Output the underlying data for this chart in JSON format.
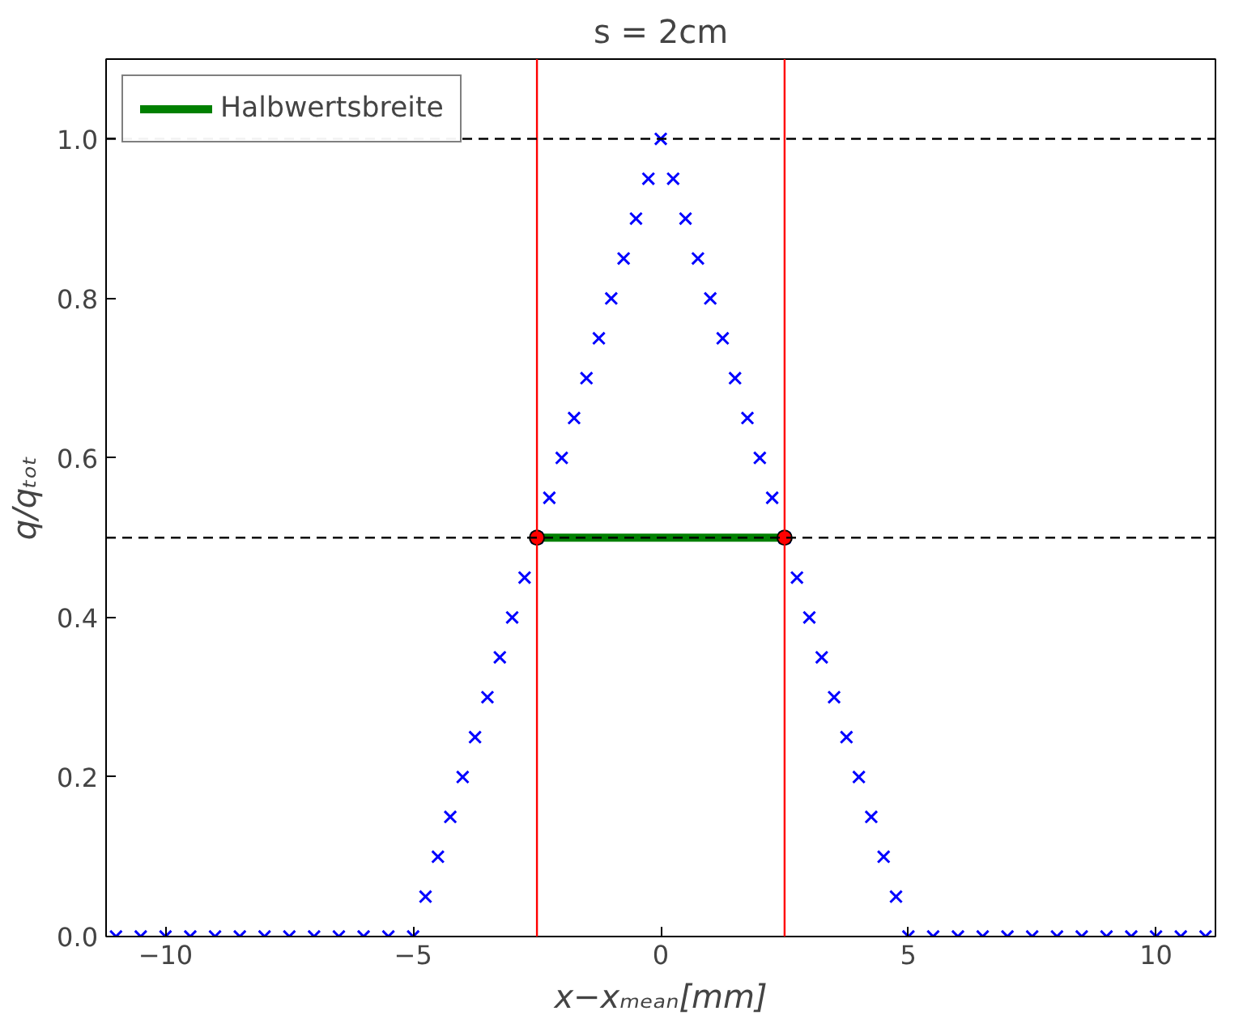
{
  "chart_data": {
    "type": "scatter",
    "title": "s = 2cm",
    "xlabel": "x−xₘₑₐₙ[mm]",
    "ylabel": "q/qₜₒₜ",
    "xlim": [
      -11.2,
      11.2
    ],
    "ylim": [
      0,
      1.1
    ],
    "xticks": [
      {
        "value": -10,
        "label": "−10"
      },
      {
        "value": -5,
        "label": "−5"
      },
      0,
      5,
      10
    ],
    "yticks": [
      {
        "value": 0,
        "label": "0.0"
      },
      0.2,
      0.4,
      0.6,
      0.8,
      {
        "value": 1,
        "label": "1.0"
      }
    ],
    "grid": false,
    "legend": "top left",
    "series": [
      {
        "marker": "cross",
        "color": "#0000ff",
        "x": [
          -11,
          -10.5,
          -10,
          -9.5,
          -9,
          -8.5,
          -8,
          -7.5,
          -7,
          -6.5,
          -6,
          -5.5,
          -5,
          -4.75,
          -4.5,
          -4.25,
          -4,
          -3.75,
          -3.5,
          -3.25,
          -3,
          -2.75,
          -2.5,
          -2.25,
          -2,
          -1.75,
          -1.5,
          -1.25,
          -1,
          -0.75,
          -0.5,
          -0.25,
          0,
          0.25,
          0.5,
          0.75,
          1,
          1.25,
          1.5,
          1.75,
          2,
          2.25,
          2.5,
          2.75,
          3,
          3.25,
          3.5,
          3.75,
          4,
          4.25,
          4.5,
          4.75,
          5,
          5.5,
          6,
          6.5,
          7,
          7.5,
          8,
          8.5,
          9,
          9.5,
          10,
          10.5,
          11
        ],
        "values": [
          0,
          0,
          0,
          0,
          0,
          0,
          0,
          0,
          0,
          0,
          0,
          0,
          0,
          0.05,
          0.1,
          0.15,
          0.2,
          0.25,
          0.3,
          0.35,
          0.4,
          0.45,
          0.5,
          0.55,
          0.6,
          0.65,
          0.7,
          0.75,
          0.8,
          0.85,
          0.9,
          0.95,
          1,
          0.95,
          0.9,
          0.85,
          0.8,
          0.75,
          0.7,
          0.65,
          0.6,
          0.55,
          0.5,
          0.45,
          0.4,
          0.35,
          0.3,
          0.25,
          0.2,
          0.15,
          0.1,
          0.05,
          0,
          0,
          0,
          0,
          0,
          0,
          0,
          0,
          0,
          0,
          0,
          0,
          0
        ]
      },
      {
        "type": "line",
        "name": "Halbwertsbreite",
        "color": "#008000",
        "x": [
          -2.5,
          2.5
        ],
        "values": [
          0.5,
          0.5
        ]
      },
      {
        "type": "scatter",
        "marker": "circle",
        "color": "#ff0000",
        "x": [
          -2.5,
          2.5
        ],
        "values": [
          0.5,
          0.5
        ]
      }
    ],
    "ref_lines": [
      {
        "axis": "x",
        "value": -2.5,
        "color": "#ff0000",
        "line_style": "solid"
      },
      {
        "axis": "x",
        "value": 2.5,
        "color": "#ff0000",
        "line_style": "solid"
      },
      {
        "axis": "y",
        "value": 1.0,
        "color": "#000000",
        "line_style": "dashed"
      },
      {
        "axis": "y",
        "value": 0.5,
        "color": "#000000",
        "line_style": "dashed"
      }
    ]
  }
}
